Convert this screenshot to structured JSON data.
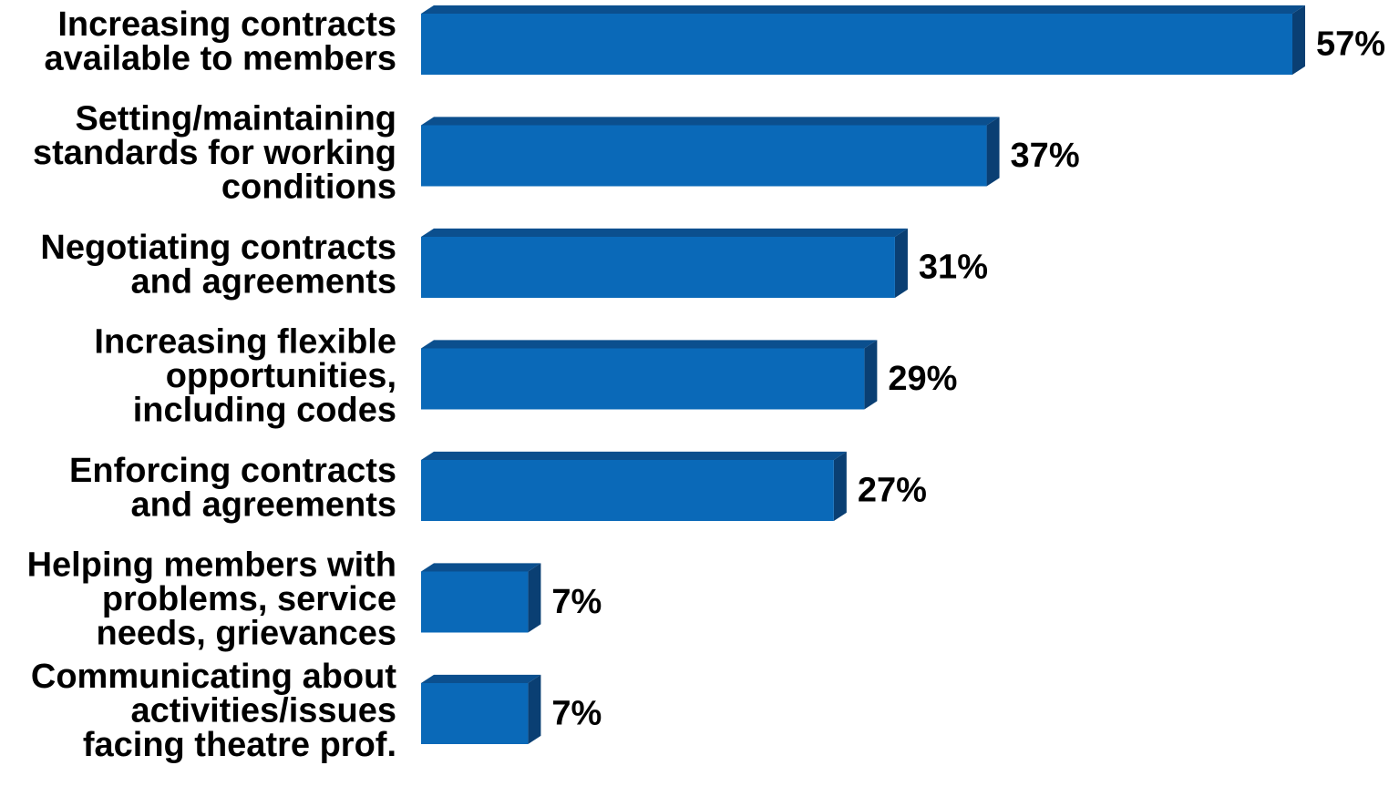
{
  "chart_data": {
    "type": "bar",
    "orientation": "horizontal",
    "style": "3d",
    "categories": [
      [
        "Increasing contracts",
        "available to members"
      ],
      [
        "Setting/maintaining",
        "standards for working",
        "conditions"
      ],
      [
        "Negotiating contracts",
        "and agreements"
      ],
      [
        "Increasing flexible",
        "opportunities,",
        "including codes"
      ],
      [
        "Enforcing contracts",
        "and agreements"
      ],
      [
        "Helping members with",
        "problems, service",
        "needs, grievances"
      ],
      [
        "Communicating about",
        "activities/issues",
        "facing theatre prof."
      ]
    ],
    "values": [
      57,
      37,
      31,
      29,
      27,
      7,
      7
    ],
    "data_labels": [
      "57%",
      "37%",
      "31%",
      "29%",
      "27%",
      "7%",
      "7%"
    ],
    "value_unit": "%",
    "xlim": [
      0,
      57
    ],
    "grid": false,
    "legend": "none",
    "colors": {
      "bar_front": "#0a69b8",
      "bar_top": "#0b4f8e",
      "bar_side": "#0a3f73",
      "text": "#000000"
    }
  }
}
